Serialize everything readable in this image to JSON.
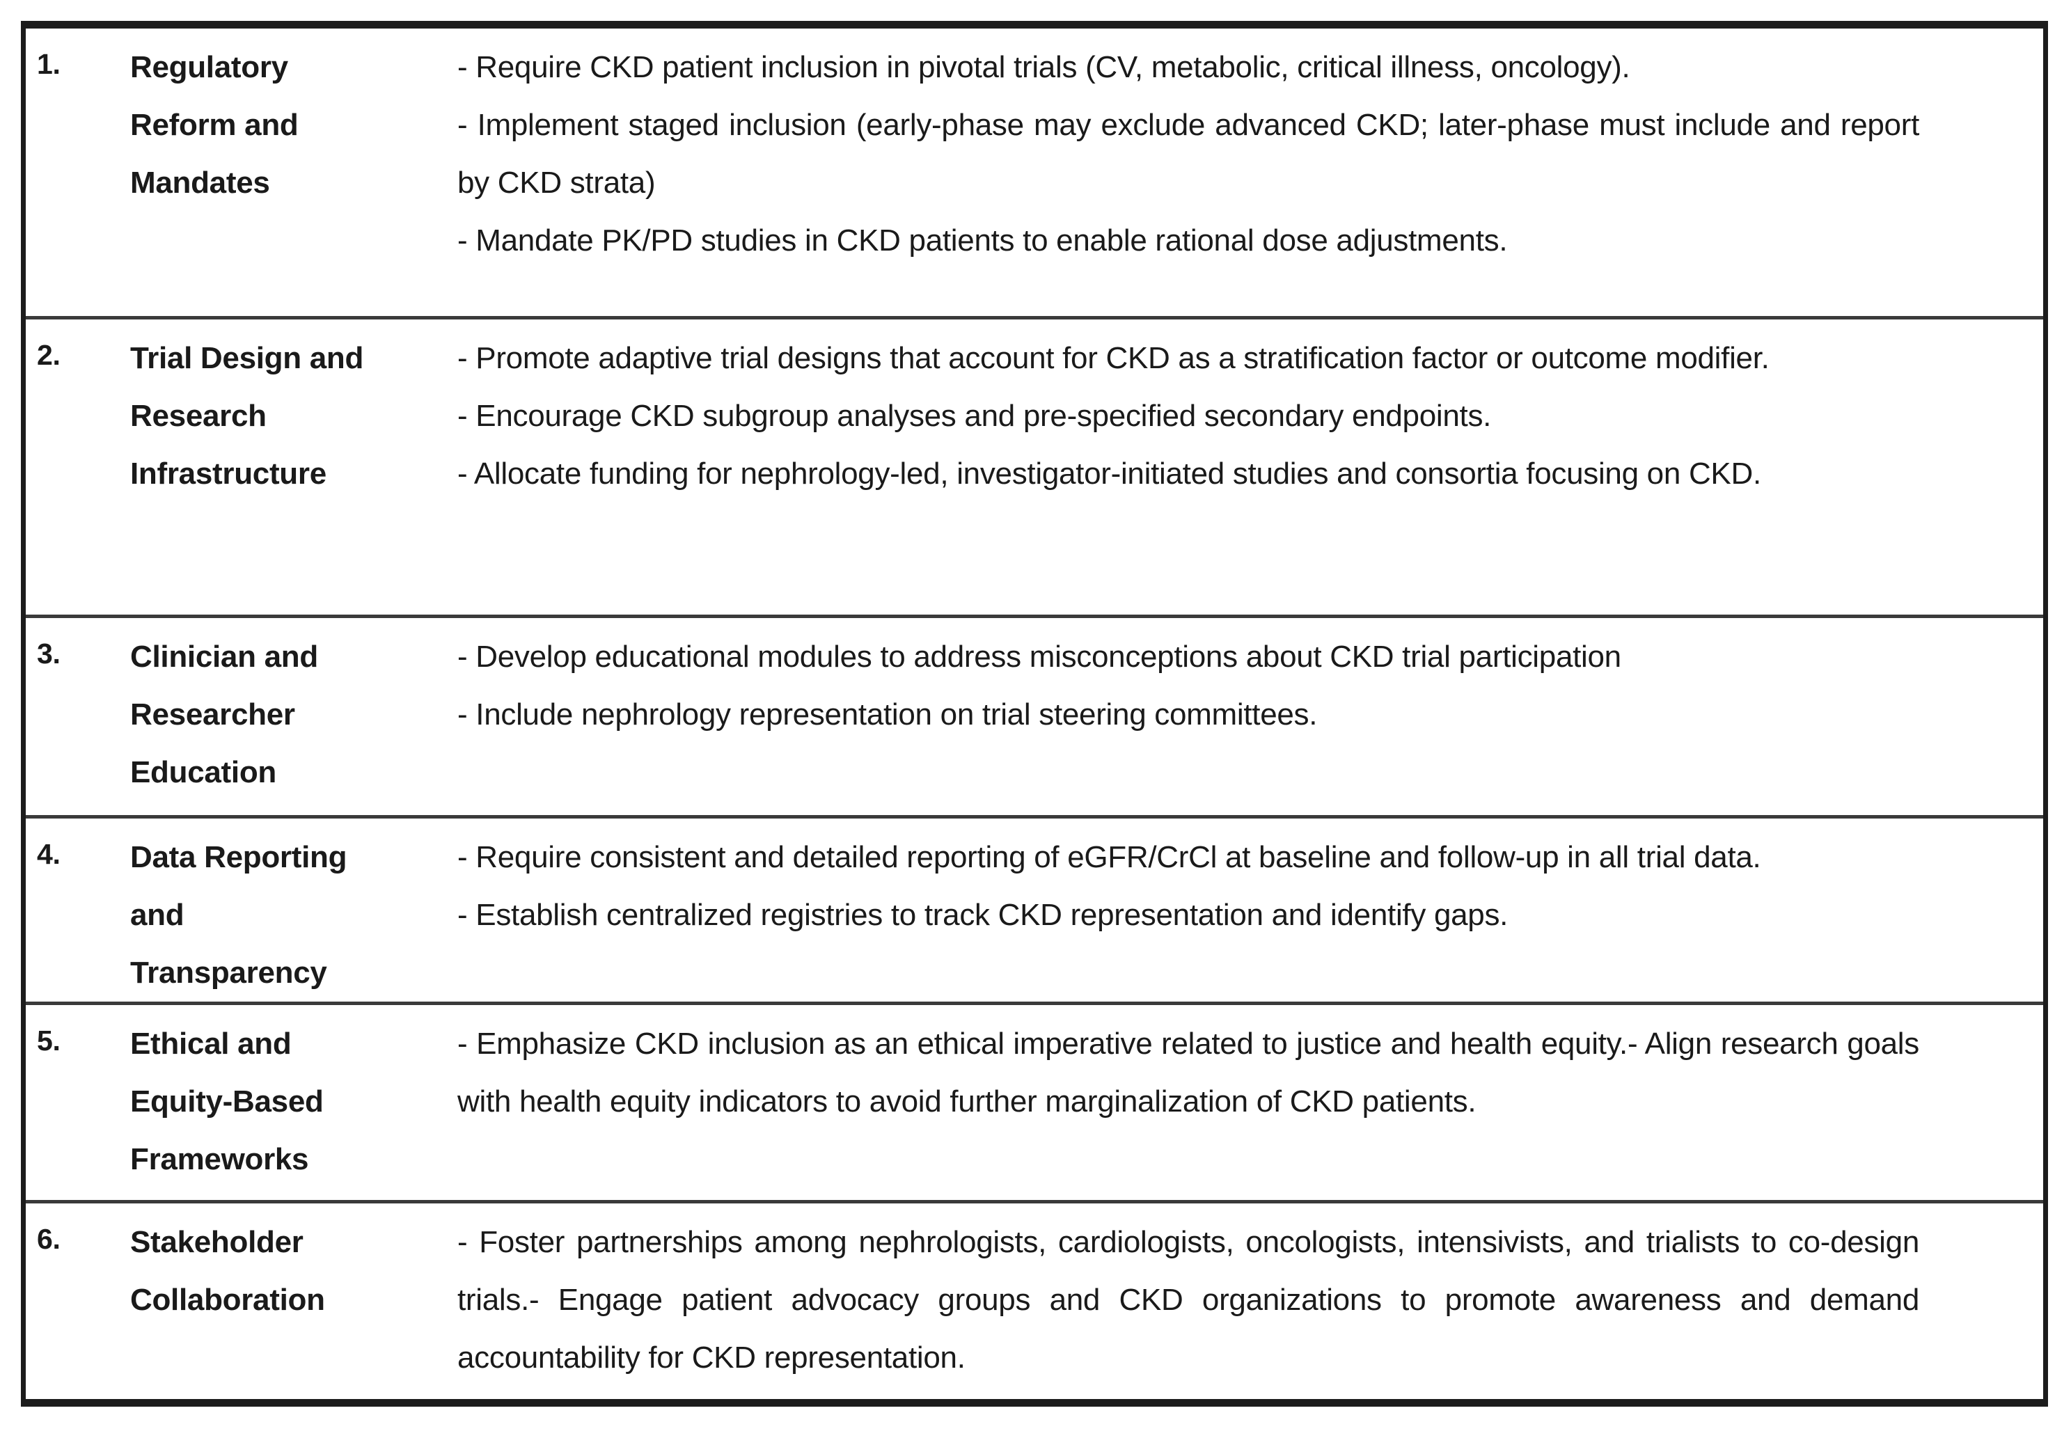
{
  "table": {
    "rows": [
      {
        "number": "1.",
        "category_lines": [
          "Regulatory",
          "Reform and",
          "Mandates"
        ],
        "items": [
          "- Require CKD patient inclusion in pivotal trials (CV, metabolic, critical illness, oncology).",
          "- Implement staged inclusion (early-phase may exclude advanced CKD; later-phase must include and report by CKD strata)",
          "- Mandate PK/PD studies in CKD patients to enable rational dose adjustments."
        ]
      },
      {
        "number": "2.",
        "category_lines": [
          "Trial Design and",
          "Research",
          "Infrastructure"
        ],
        "items": [
          "- Promote adaptive trial designs that account for CKD as a stratification factor or outcome modifier.",
          "- Encourage CKD subgroup analyses and pre-specified secondary endpoints.",
          "- Allocate funding for nephrology-led, investigator-initiated studies and consortia focusing on CKD."
        ]
      },
      {
        "number": "3.",
        "category_lines": [
          "Clinician and",
          "Researcher",
          "Education"
        ],
        "items": [
          "- Develop educational modules to address misconceptions about CKD trial participation",
          "- Include nephrology representation on trial steering committees."
        ]
      },
      {
        "number": "4.",
        "category_lines": [
          "Data Reporting",
          "and",
          "Transparency"
        ],
        "items": [
          "- Require consistent and detailed reporting of eGFR/CrCl at baseline and follow-up in all trial data.",
          "- Establish centralized registries to track CKD representation and identify gaps."
        ]
      },
      {
        "number": "5.",
        "category_lines": [
          "Ethical and",
          "Equity-Based",
          "Frameworks"
        ],
        "items": [
          "- Emphasize CKD inclusion as an ethical imperative related to justice and health equity.- Align research goals with health equity indicators to avoid further marginalization of CKD patients."
        ]
      },
      {
        "number": "6.",
        "category_lines": [
          "Stakeholder",
          "Collaboration"
        ],
        "items": [
          "- Foster partnerships among nephrologists, cardiologists, oncologists, intensivists, and trialists to co-design trials.- Engage patient advocacy groups and CKD organizations to promote awareness and demand accountability for CKD representation."
        ]
      }
    ]
  },
  "colors": {
    "background": "#ffffff",
    "text": "#1a1a1a",
    "outer_border": "#1c1c1c",
    "row_divider": "#3a3a3a"
  }
}
